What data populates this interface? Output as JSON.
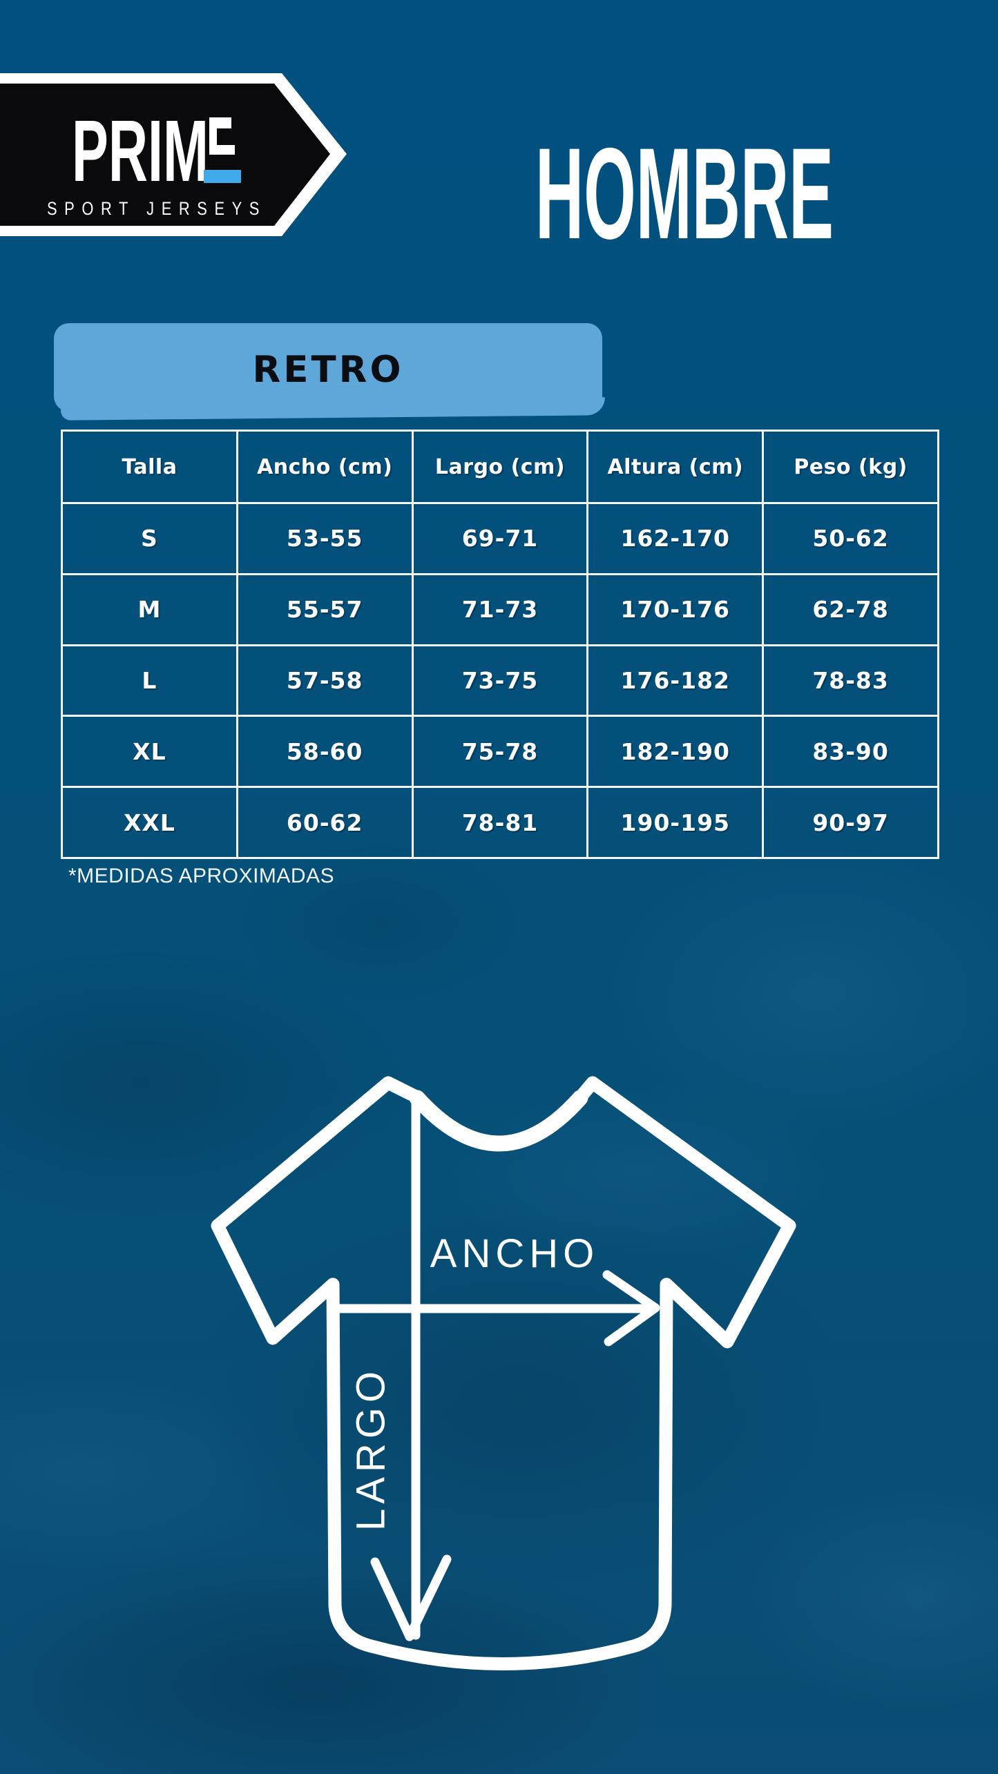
{
  "page": {
    "background": "#02507c"
  },
  "logo": {
    "brand": "PRIM",
    "brand_full": "PRIME",
    "tagline": "SPORT JERSEYS",
    "accent_color": "#41aae9",
    "banner_color": "#0a0a0c",
    "border_color": "#ffffff"
  },
  "header": {
    "title": "HOMBRE"
  },
  "category": {
    "label": "RETRO",
    "badge_color": "#5fa6d9"
  },
  "size_table": {
    "columns": [
      "Talla",
      "Ancho (cm)",
      "Largo (cm)",
      "Altura (cm)",
      "Peso (kg)"
    ],
    "rows": [
      [
        "S",
        "53-55",
        "69-71",
        "162-170",
        "50-62"
      ],
      [
        "M",
        "55-57",
        "71-73",
        "170-176",
        "62-78"
      ],
      [
        "L",
        "57-58",
        "73-75",
        "176-182",
        "78-83"
      ],
      [
        "XL",
        "58-60",
        "75-78",
        "182-190",
        "83-90"
      ],
      [
        "XXL",
        "60-62",
        "78-81",
        "190-195",
        "90-97"
      ]
    ]
  },
  "note": "*MEDIDAS APROXIMADAS",
  "diagram": {
    "width_label": "ANCHO",
    "length_label": "LARGO"
  }
}
